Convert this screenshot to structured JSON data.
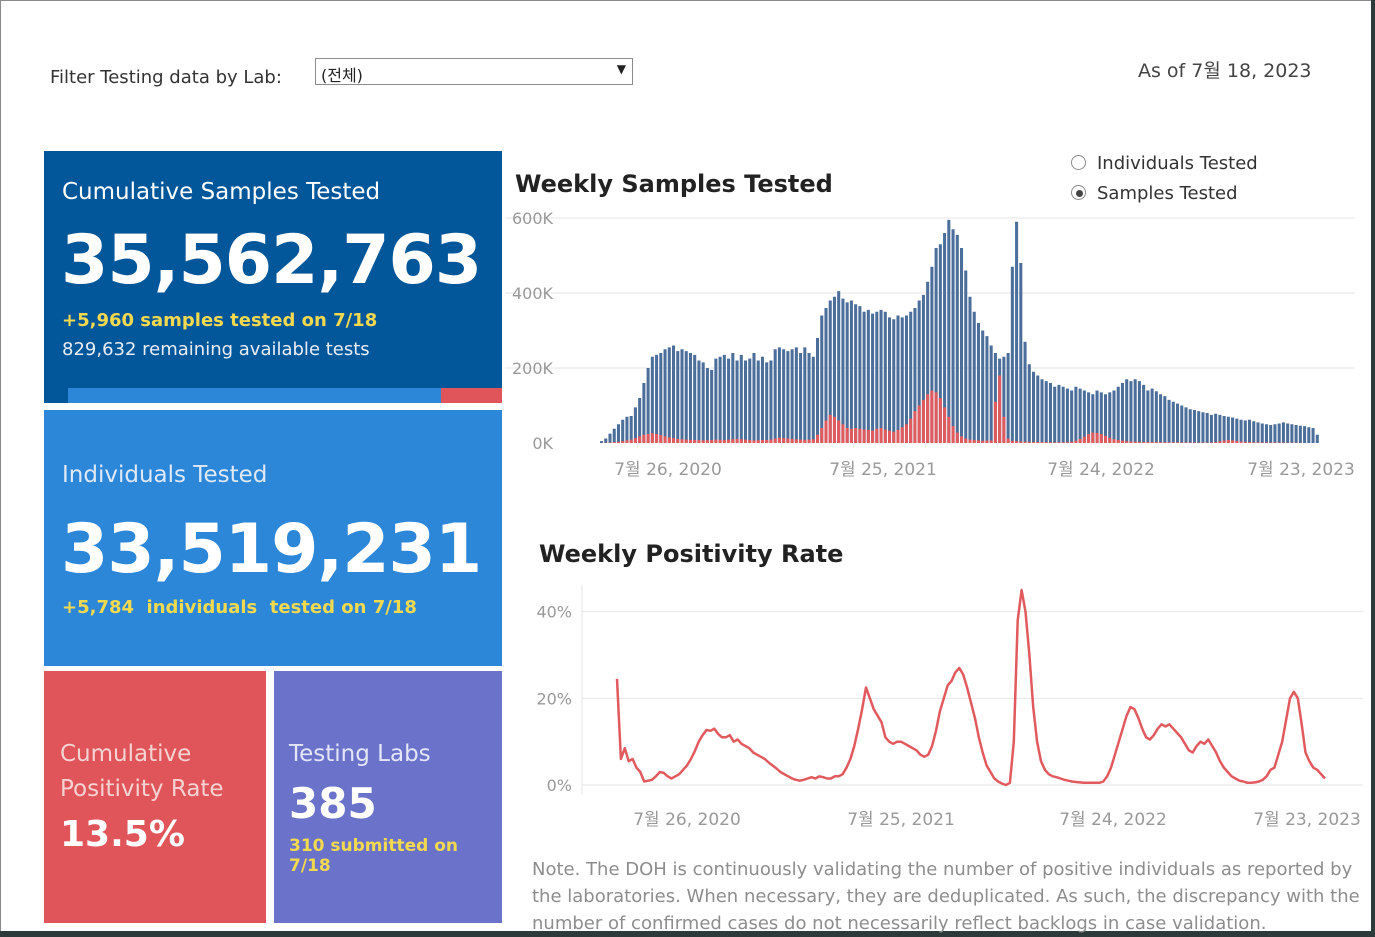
{
  "filter": {
    "label": "Filter Testing data by Lab:",
    "selected": "(전체)"
  },
  "as_of": "As of 7월 18, 2023",
  "tiles": {
    "samples": {
      "title": "Cumulative Samples Tested",
      "value": "35,562,763",
      "change": "+5,960 samples tested on 7/18",
      "remaining": "829,632 remaining available tests",
      "used_fraction": 0.86
    },
    "individuals": {
      "title": "Individuals Tested",
      "value": "33,519,231",
      "change": "+5,784  individuals  tested on 7/18"
    },
    "positivity": {
      "title_line1": "Cumulative",
      "title_line2": "Positivity Rate",
      "value": "13.5%"
    },
    "labs": {
      "title": "Testing Labs",
      "value": "385",
      "change": "310 submitted on 7/18"
    }
  },
  "weekly_samples": {
    "title": "Weekly Samples Tested",
    "toggle": {
      "options": [
        "Individuals Tested",
        "Samples Tested"
      ],
      "selected": "Samples Tested"
    }
  },
  "weekly_positivity": {
    "title": "Weekly Positivity Rate"
  },
  "note": "Note. The DOH is continuously validating the number of positive individuals as reported by the laboratories. When necessary, they are deduplicated. As such, the discrepancy with the number of confirmed cases do not necessarily reflect backlogs in case validation.",
  "colors": {
    "navy": "#02569a",
    "blue": "#2c87d9",
    "red": "#e05559",
    "purple": "#6a73c9",
    "bar_blue": "#4b6f9a",
    "bar_red": "#e05a5e",
    "yellow": "#f2d94e"
  },
  "chart_data": [
    {
      "type": "bar",
      "title": "Weekly Samples Tested",
      "x_ticks": [
        "7월 26, 2020",
        "7월 25, 2021",
        "7월 24, 2022",
        "7월 23, 2023"
      ],
      "y_ticks": [
        "0K",
        "200K",
        "400K",
        "600K"
      ],
      "ylim": [
        0,
        600000
      ],
      "grid": true,
      "series_blue_values": [
        5000,
        12000,
        25000,
        38000,
        50000,
        62000,
        70000,
        72000,
        95000,
        120000,
        160000,
        200000,
        230000,
        235000,
        240000,
        250000,
        255000,
        260000,
        245000,
        250000,
        245000,
        240000,
        235000,
        220000,
        215000,
        200000,
        195000,
        225000,
        230000,
        235000,
        225000,
        240000,
        220000,
        235000,
        220000,
        225000,
        240000,
        220000,
        230000,
        215000,
        220000,
        250000,
        255000,
        250000,
        245000,
        250000,
        255000,
        240000,
        255000,
        240000,
        230000,
        280000,
        340000,
        360000,
        380000,
        390000,
        405000,
        385000,
        375000,
        380000,
        370000,
        365000,
        350000,
        355000,
        345000,
        350000,
        355000,
        350000,
        335000,
        330000,
        340000,
        335000,
        340000,
        350000,
        360000,
        380000,
        395000,
        430000,
        470000,
        520000,
        530000,
        560000,
        595000,
        570000,
        555000,
        520000,
        460000,
        390000,
        350000,
        320000,
        300000,
        285000,
        260000,
        240000,
        225000,
        230000,
        240000,
        470000,
        590000,
        480000,
        270000,
        210000,
        190000,
        180000,
        170000,
        165000,
        160000,
        150000,
        155000,
        150000,
        145000,
        140000,
        150000,
        145000,
        140000,
        135000,
        130000,
        140000,
        135000,
        130000,
        135000,
        140000,
        150000,
        160000,
        170000,
        165000,
        170000,
        165000,
        155000,
        140000,
        145000,
        138000,
        130000,
        125000,
        115000,
        110000,
        105000,
        100000,
        95000,
        90000,
        88000,
        85000,
        82000,
        80000,
        75000,
        78000,
        75000,
        72000,
        70000,
        68000,
        65000,
        62000,
        60000,
        62000,
        58000,
        55000,
        52000,
        50000,
        48000,
        50000,
        52000,
        55000,
        52000,
        50000,
        48000,
        46000,
        45000,
        42000,
        40000,
        22000
      ],
      "series_red_values": [
        300,
        800,
        1500,
        2500,
        3500,
        5000,
        7000,
        9000,
        13000,
        18000,
        22000,
        24000,
        26000,
        24000,
        21000,
        18000,
        15000,
        13000,
        11000,
        10000,
        9000,
        8500,
        8000,
        7500,
        7000,
        7500,
        8000,
        9000,
        8500,
        8000,
        9000,
        10000,
        11000,
        10000,
        9000,
        8000,
        7000,
        7500,
        8000,
        8000,
        9000,
        12000,
        14000,
        13000,
        12000,
        11000,
        10000,
        9000,
        8500,
        9000,
        10000,
        22000,
        40000,
        60000,
        75000,
        70000,
        60000,
        50000,
        40000,
        38000,
        40000,
        38000,
        36000,
        35000,
        33000,
        38000,
        40000,
        36000,
        33000,
        30000,
        35000,
        42000,
        50000,
        65000,
        85000,
        100000,
        115000,
        130000,
        140000,
        135000,
        120000,
        95000,
        70000,
        45000,
        28000,
        18000,
        12000,
        9000,
        8000,
        7000,
        6000,
        6500,
        7000,
        110000,
        180000,
        70000,
        12000,
        6000,
        5000,
        4000,
        3500,
        3000,
        2800,
        2600,
        2500,
        2300,
        2200,
        2100,
        2000,
        2000,
        2200,
        3500,
        6000,
        11000,
        17000,
        24000,
        28000,
        27000,
        24000,
        19000,
        14000,
        10000,
        8000,
        6500,
        5000,
        4000,
        3500,
        3000,
        2800,
        2600,
        2500,
        2400,
        2300,
        2200,
        2000,
        1900,
        1800,
        1700,
        1600,
        1500,
        1400,
        1300,
        1200,
        1300,
        1500,
        2500,
        4500,
        6500,
        8000,
        7000,
        5500,
        4000,
        3000,
        2500,
        2000,
        1800,
        1600,
        1500,
        1400,
        1300,
        1200,
        1100,
        1000,
        900,
        800,
        500
      ]
    },
    {
      "type": "line",
      "title": "Weekly Positivity Rate",
      "x_ticks": [
        "7월 26, 2020",
        "7월 25, 2021",
        "7월 24, 2022",
        "7월 23, 2023"
      ],
      "y_ticks": [
        "0%",
        "20%",
        "40%"
      ],
      "ylim": [
        0,
        0.45
      ],
      "grid": true,
      "values": [
        0.245,
        0.06,
        0.085,
        0.055,
        0.06,
        0.04,
        0.03,
        0.008,
        0.01,
        0.012,
        0.02,
        0.03,
        0.028,
        0.02,
        0.015,
        0.02,
        0.025,
        0.035,
        0.045,
        0.06,
        0.078,
        0.1,
        0.115,
        0.127,
        0.125,
        0.13,
        0.118,
        0.11,
        0.11,
        0.115,
        0.1,
        0.105,
        0.095,
        0.09,
        0.085,
        0.075,
        0.07,
        0.065,
        0.06,
        0.052,
        0.045,
        0.038,
        0.03,
        0.025,
        0.02,
        0.015,
        0.012,
        0.01,
        0.012,
        0.015,
        0.018,
        0.015,
        0.02,
        0.018,
        0.015,
        0.015,
        0.02,
        0.02,
        0.025,
        0.04,
        0.06,
        0.09,
        0.13,
        0.175,
        0.225,
        0.2,
        0.175,
        0.16,
        0.145,
        0.11,
        0.1,
        0.095,
        0.1,
        0.1,
        0.095,
        0.09,
        0.085,
        0.08,
        0.07,
        0.065,
        0.07,
        0.09,
        0.125,
        0.17,
        0.2,
        0.23,
        0.24,
        0.26,
        0.27,
        0.255,
        0.225,
        0.19,
        0.155,
        0.11,
        0.075,
        0.045,
        0.03,
        0.015,
        0.008,
        0.003,
        0.0,
        0.005,
        0.1,
        0.38,
        0.45,
        0.4,
        0.3,
        0.18,
        0.1,
        0.055,
        0.035,
        0.025,
        0.02,
        0.018,
        0.015,
        0.012,
        0.01,
        0.008,
        0.007,
        0.006,
        0.005,
        0.005,
        0.005,
        0.005,
        0.005,
        0.008,
        0.02,
        0.04,
        0.07,
        0.1,
        0.13,
        0.16,
        0.18,
        0.175,
        0.155,
        0.13,
        0.11,
        0.105,
        0.115,
        0.13,
        0.14,
        0.135,
        0.14,
        0.13,
        0.12,
        0.11,
        0.095,
        0.08,
        0.075,
        0.09,
        0.1,
        0.095,
        0.105,
        0.09,
        0.075,
        0.055,
        0.04,
        0.03,
        0.02,
        0.015,
        0.01,
        0.008,
        0.005,
        0.005,
        0.006,
        0.008,
        0.012,
        0.02,
        0.035,
        0.04,
        0.07,
        0.1,
        0.15,
        0.2,
        0.215,
        0.2,
        0.14,
        0.075,
        0.055,
        0.04,
        0.035,
        0.025,
        0.015
      ]
    }
  ]
}
